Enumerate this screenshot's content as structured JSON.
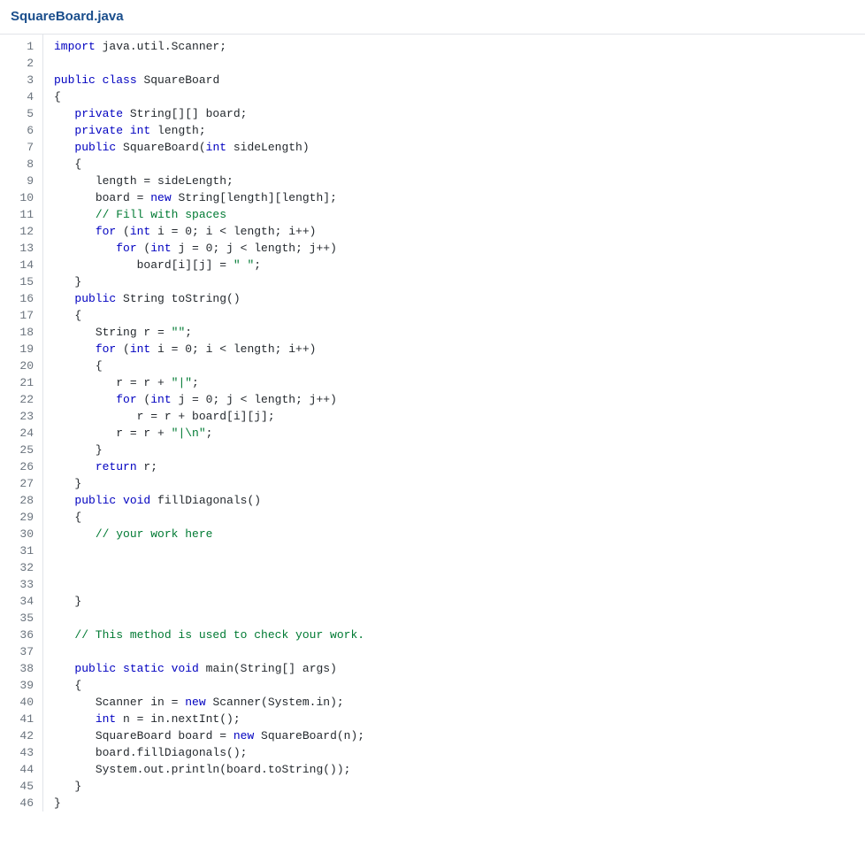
{
  "file": {
    "name": "SquareBoard.java",
    "title_color": "#1a4e8c",
    "title_fontsize": 15,
    "title_fontweight": 700
  },
  "editor": {
    "background_color": "#ffffff",
    "gutter_text_color": "#6a737d",
    "code_font": "SFMono-Regular, Consolas, Liberation Mono, Menlo, monospace",
    "code_fontsize": 13,
    "line_height": 19,
    "border_color": "#e1e4e8",
    "tab_width": 3,
    "token_colors": {
      "keyword": "#0000c0",
      "string": "#007a33",
      "comment": "#007a33",
      "default": "#24292e"
    }
  },
  "code": {
    "line_count": 46,
    "lines": [
      {
        "n": 1,
        "indent": 0,
        "tokens": [
          [
            "keyword",
            "import"
          ],
          [
            "plain",
            " java.util.Scanner;"
          ]
        ]
      },
      {
        "n": 2,
        "indent": 0,
        "tokens": []
      },
      {
        "n": 3,
        "indent": 0,
        "tokens": [
          [
            "keyword",
            "public"
          ],
          [
            "plain",
            " "
          ],
          [
            "keyword",
            "class"
          ],
          [
            "plain",
            " SquareBoard"
          ]
        ]
      },
      {
        "n": 4,
        "indent": 0,
        "tokens": [
          [
            "plain",
            "{"
          ]
        ]
      },
      {
        "n": 5,
        "indent": 1,
        "tokens": [
          [
            "keyword",
            "private"
          ],
          [
            "plain",
            " String[][] board;"
          ]
        ]
      },
      {
        "n": 6,
        "indent": 1,
        "tokens": [
          [
            "keyword",
            "private"
          ],
          [
            "plain",
            " "
          ],
          [
            "keyword",
            "int"
          ],
          [
            "plain",
            " length;"
          ]
        ]
      },
      {
        "n": 7,
        "indent": 1,
        "tokens": [
          [
            "keyword",
            "public"
          ],
          [
            "plain",
            " SquareBoard("
          ],
          [
            "keyword",
            "int"
          ],
          [
            "plain",
            " sideLength)"
          ]
        ]
      },
      {
        "n": 8,
        "indent": 1,
        "tokens": [
          [
            "plain",
            "{"
          ]
        ]
      },
      {
        "n": 9,
        "indent": 2,
        "tokens": [
          [
            "plain",
            "length = sideLength;"
          ]
        ]
      },
      {
        "n": 10,
        "indent": 2,
        "tokens": [
          [
            "plain",
            "board = "
          ],
          [
            "keyword",
            "new"
          ],
          [
            "plain",
            " String[length][length];"
          ]
        ]
      },
      {
        "n": 11,
        "indent": 2,
        "tokens": [
          [
            "comment",
            "// Fill with spaces"
          ]
        ]
      },
      {
        "n": 12,
        "indent": 2,
        "tokens": [
          [
            "keyword",
            "for"
          ],
          [
            "plain",
            " ("
          ],
          [
            "keyword",
            "int"
          ],
          [
            "plain",
            " i = 0; i < length; i++)"
          ]
        ]
      },
      {
        "n": 13,
        "indent": 3,
        "tokens": [
          [
            "keyword",
            "for"
          ],
          [
            "plain",
            " ("
          ],
          [
            "keyword",
            "int"
          ],
          [
            "plain",
            " j = 0; j < length; j++)"
          ]
        ]
      },
      {
        "n": 14,
        "indent": 4,
        "tokens": [
          [
            "plain",
            "board[i][j] = "
          ],
          [
            "string",
            "\" \""
          ],
          [
            "plain",
            ";"
          ]
        ]
      },
      {
        "n": 15,
        "indent": 1,
        "tokens": [
          [
            "plain",
            "}"
          ]
        ]
      },
      {
        "n": 16,
        "indent": 1,
        "tokens": [
          [
            "keyword",
            "public"
          ],
          [
            "plain",
            " String toString()"
          ]
        ]
      },
      {
        "n": 17,
        "indent": 1,
        "tokens": [
          [
            "plain",
            "{"
          ]
        ]
      },
      {
        "n": 18,
        "indent": 2,
        "tokens": [
          [
            "plain",
            "String r = "
          ],
          [
            "string",
            "\"\""
          ],
          [
            "plain",
            ";"
          ]
        ]
      },
      {
        "n": 19,
        "indent": 2,
        "tokens": [
          [
            "keyword",
            "for"
          ],
          [
            "plain",
            " ("
          ],
          [
            "keyword",
            "int"
          ],
          [
            "plain",
            " i = 0; i < length; i++)"
          ]
        ]
      },
      {
        "n": 20,
        "indent": 2,
        "tokens": [
          [
            "plain",
            "{"
          ]
        ]
      },
      {
        "n": 21,
        "indent": 3,
        "tokens": [
          [
            "plain",
            "r = r + "
          ],
          [
            "string",
            "\"|\""
          ],
          [
            "plain",
            ";"
          ]
        ]
      },
      {
        "n": 22,
        "indent": 3,
        "tokens": [
          [
            "keyword",
            "for"
          ],
          [
            "plain",
            " ("
          ],
          [
            "keyword",
            "int"
          ],
          [
            "plain",
            " j = 0; j < length; j++)"
          ]
        ]
      },
      {
        "n": 23,
        "indent": 4,
        "tokens": [
          [
            "plain",
            "r = r + board[i][j];"
          ]
        ]
      },
      {
        "n": 24,
        "indent": 3,
        "tokens": [
          [
            "plain",
            "r = r + "
          ],
          [
            "string",
            "\"|\\n\""
          ],
          [
            "plain",
            ";"
          ]
        ]
      },
      {
        "n": 25,
        "indent": 2,
        "tokens": [
          [
            "plain",
            "}"
          ]
        ]
      },
      {
        "n": 26,
        "indent": 2,
        "tokens": [
          [
            "keyword",
            "return"
          ],
          [
            "plain",
            " r;"
          ]
        ]
      },
      {
        "n": 27,
        "indent": 1,
        "tokens": [
          [
            "plain",
            "}"
          ]
        ]
      },
      {
        "n": 28,
        "indent": 1,
        "tokens": [
          [
            "keyword",
            "public"
          ],
          [
            "plain",
            " "
          ],
          [
            "keyword",
            "void"
          ],
          [
            "plain",
            " fillDiagonals()"
          ]
        ]
      },
      {
        "n": 29,
        "indent": 1,
        "tokens": [
          [
            "plain",
            "{"
          ]
        ]
      },
      {
        "n": 30,
        "indent": 2,
        "tokens": [
          [
            "comment",
            "// your work here"
          ]
        ]
      },
      {
        "n": 31,
        "indent": 0,
        "tokens": []
      },
      {
        "n": 32,
        "indent": 0,
        "tokens": []
      },
      {
        "n": 33,
        "indent": 0,
        "tokens": []
      },
      {
        "n": 34,
        "indent": 1,
        "tokens": [
          [
            "plain",
            "}"
          ]
        ]
      },
      {
        "n": 35,
        "indent": 0,
        "tokens": []
      },
      {
        "n": 36,
        "indent": 1,
        "tokens": [
          [
            "comment",
            "// This method is used to check your work."
          ]
        ]
      },
      {
        "n": 37,
        "indent": 0,
        "tokens": []
      },
      {
        "n": 38,
        "indent": 1,
        "tokens": [
          [
            "keyword",
            "public"
          ],
          [
            "plain",
            " "
          ],
          [
            "keyword",
            "static"
          ],
          [
            "plain",
            " "
          ],
          [
            "keyword",
            "void"
          ],
          [
            "plain",
            " main(String[] args)"
          ]
        ]
      },
      {
        "n": 39,
        "indent": 1,
        "tokens": [
          [
            "plain",
            "{"
          ]
        ]
      },
      {
        "n": 40,
        "indent": 2,
        "tokens": [
          [
            "plain",
            "Scanner in = "
          ],
          [
            "keyword",
            "new"
          ],
          [
            "plain",
            " Scanner(System.in);"
          ]
        ]
      },
      {
        "n": 41,
        "indent": 2,
        "tokens": [
          [
            "keyword",
            "int"
          ],
          [
            "plain",
            " n = in.nextInt();"
          ]
        ]
      },
      {
        "n": 42,
        "indent": 2,
        "tokens": [
          [
            "plain",
            "SquareBoard board = "
          ],
          [
            "keyword",
            "new"
          ],
          [
            "plain",
            " SquareBoard(n);"
          ]
        ]
      },
      {
        "n": 43,
        "indent": 2,
        "tokens": [
          [
            "plain",
            "board.fillDiagonals();"
          ]
        ]
      },
      {
        "n": 44,
        "indent": 2,
        "tokens": [
          [
            "plain",
            "System.out.println(board.toString());"
          ]
        ]
      },
      {
        "n": 45,
        "indent": 1,
        "tokens": [
          [
            "plain",
            "}"
          ]
        ]
      },
      {
        "n": 46,
        "indent": 0,
        "tokens": [
          [
            "plain",
            "}"
          ]
        ]
      }
    ]
  }
}
